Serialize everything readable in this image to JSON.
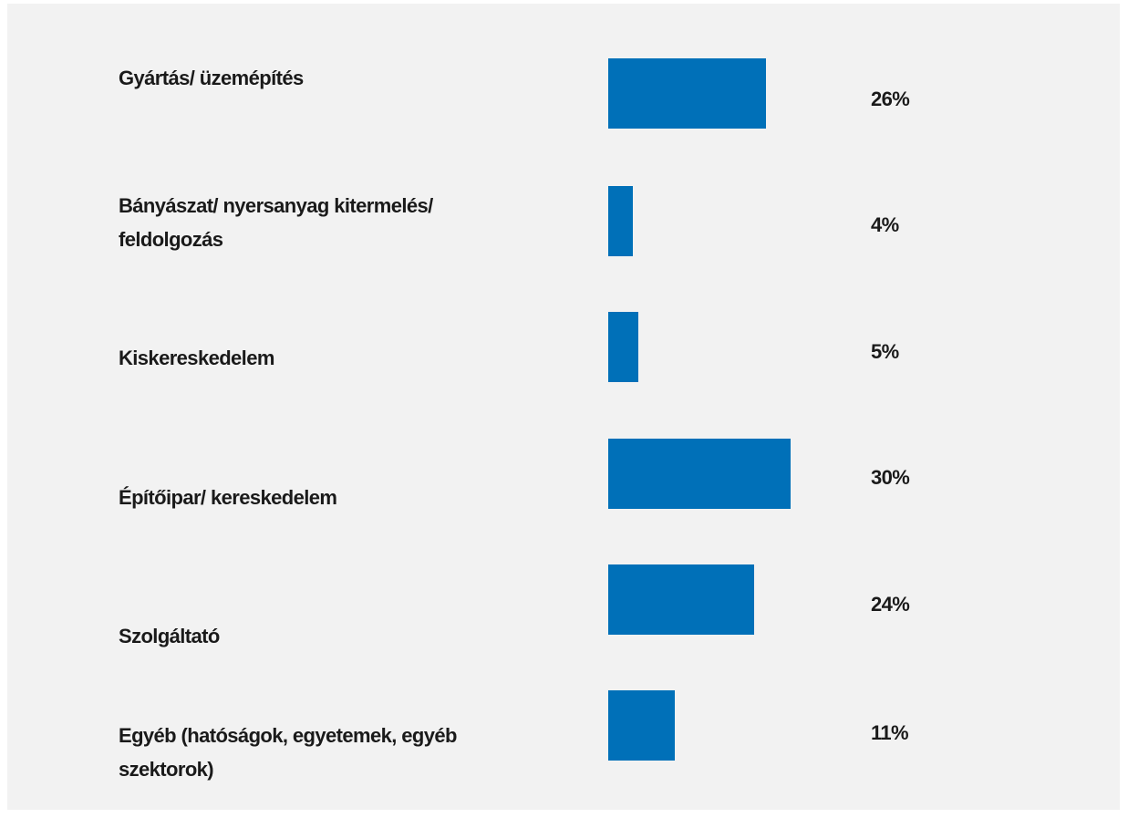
{
  "chart_data": {
    "type": "bar",
    "orientation": "horizontal",
    "color": "#0070b8",
    "categories": [
      "Gyártás/ üzemépítés",
      "Bányászat/ nyersanyag kitermelés/ feldolgozás",
      "Kiskereskedelem",
      "Építőipar/ kereskedelem",
      "Szolgáltató",
      "Egyéb (hatóságok, egyetemek, egyéb szektorok)"
    ],
    "values": [
      26,
      4,
      5,
      30,
      24,
      11
    ],
    "value_labels": [
      "26%",
      "4%",
      "5%",
      "30%",
      "24%",
      "11%"
    ]
  }
}
